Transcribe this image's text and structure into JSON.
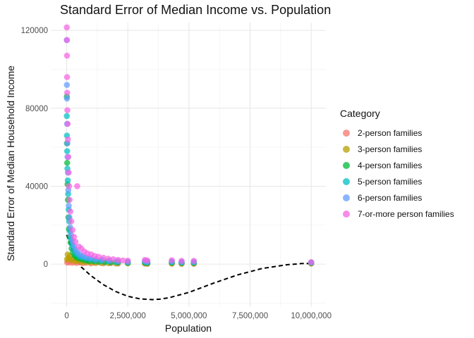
{
  "chart_data": {
    "type": "scatter",
    "title": "Standard Error of Median Income vs. Population",
    "xlabel": "Population",
    "ylabel": "Standard Error of Median Household Income",
    "xlim": [
      -650000,
      10600000
    ],
    "ylim": [
      -22000,
      124000
    ],
    "x_ticks": [
      0,
      2500000,
      5000000,
      7500000,
      10000000
    ],
    "x_tick_labels": [
      "0",
      "2,500,000",
      "5,000,000",
      "7,500,000",
      "10,000,000"
    ],
    "y_ticks": [
      0,
      40000,
      80000,
      120000
    ],
    "y_tick_labels": [
      "0",
      "40000",
      "80000",
      "120000"
    ],
    "grid": true,
    "legend_title": "Category",
    "legend_position": "right",
    "series": [
      {
        "name": "2-person families",
        "color": "#F8766D",
        "points": [
          [
            20000,
            800
          ],
          [
            60000,
            1500
          ],
          [
            110000,
            900
          ],
          [
            160000,
            1800
          ],
          [
            230000,
            700
          ],
          [
            300000,
            1200
          ],
          [
            400000,
            600
          ],
          [
            520000,
            900
          ],
          [
            650000,
            500
          ],
          [
            800000,
            700
          ],
          [
            1000000,
            400
          ],
          [
            1200000,
            600
          ],
          [
            1500000,
            400
          ],
          [
            1800000,
            500
          ],
          [
            2100000,
            300
          ],
          [
            2500000,
            400
          ],
          [
            3200000,
            300
          ],
          [
            3300000,
            200
          ],
          [
            4300000,
            250
          ],
          [
            4700000,
            200
          ],
          [
            5200000,
            200
          ],
          [
            10000000,
            300
          ]
        ]
      },
      {
        "name": "3-person families",
        "color": "#B79F00",
        "points": [
          [
            15000,
            2500
          ],
          [
            40000,
            5000
          ],
          [
            80000,
            3000
          ],
          [
            130000,
            4200
          ],
          [
            200000,
            2000
          ],
          [
            280000,
            3000
          ],
          [
            380000,
            1500
          ],
          [
            480000,
            2000
          ],
          [
            600000,
            1200
          ],
          [
            750000,
            1000
          ],
          [
            950000,
            900
          ],
          [
            1150000,
            700
          ],
          [
            1400000,
            600
          ],
          [
            1700000,
            500
          ],
          [
            2000000,
            400
          ],
          [
            2500000,
            500
          ],
          [
            3200000,
            400
          ],
          [
            3300000,
            300
          ],
          [
            4300000,
            400
          ],
          [
            4700000,
            300
          ],
          [
            5200000,
            300
          ],
          [
            10000000,
            400
          ]
        ]
      },
      {
        "name": "4-person families",
        "color": "#00BA38",
        "points": [
          [
            5000,
            86000
          ],
          [
            10000,
            62000
          ],
          [
            20000,
            52000
          ],
          [
            35000,
            41000
          ],
          [
            50000,
            33000
          ],
          [
            70000,
            24000
          ],
          [
            90000,
            18000
          ],
          [
            120000,
            14000
          ],
          [
            160000,
            11000
          ],
          [
            200000,
            8000
          ],
          [
            260000,
            6000
          ],
          [
            320000,
            4500
          ],
          [
            400000,
            3500
          ],
          [
            500000,
            3000
          ],
          [
            620000,
            2500
          ],
          [
            760000,
            2000
          ],
          [
            900000,
            1500
          ],
          [
            1100000,
            1500
          ],
          [
            1300000,
            1200
          ],
          [
            1550000,
            1000
          ],
          [
            1800000,
            900
          ],
          [
            2100000,
            800
          ],
          [
            2500000,
            700
          ],
          [
            3200000,
            800
          ],
          [
            3300000,
            600
          ],
          [
            4300000,
            700
          ],
          [
            4700000,
            600
          ],
          [
            5200000,
            600
          ],
          [
            10000000,
            600
          ]
        ]
      },
      {
        "name": "5-person families",
        "color": "#00BFC4",
        "points": [
          [
            5000,
            76000
          ],
          [
            10000,
            66000
          ],
          [
            20000,
            58000
          ],
          [
            30000,
            49000
          ],
          [
            45000,
            43000
          ],
          [
            60000,
            36000
          ],
          [
            80000,
            28000
          ],
          [
            100000,
            22000
          ],
          [
            130000,
            17000
          ],
          [
            170000,
            13000
          ],
          [
            220000,
            10000
          ],
          [
            280000,
            8000
          ],
          [
            350000,
            6000
          ],
          [
            430000,
            5000
          ],
          [
            520000,
            4000
          ],
          [
            640000,
            3500
          ],
          [
            780000,
            3000
          ],
          [
            950000,
            2500
          ],
          [
            1150000,
            2000
          ],
          [
            1400000,
            1800
          ],
          [
            1700000,
            1500
          ],
          [
            2000000,
            1200
          ],
          [
            2500000,
            1000
          ],
          [
            3200000,
            1200
          ],
          [
            3300000,
            900
          ],
          [
            4300000,
            1100
          ],
          [
            4700000,
            900
          ],
          [
            5200000,
            900
          ],
          [
            10000000,
            800
          ]
        ]
      },
      {
        "name": "6-person families",
        "color": "#619CFF",
        "points": [
          [
            5000,
            115000
          ],
          [
            8000,
            92000
          ],
          [
            12000,
            85000
          ],
          [
            18000,
            72000
          ],
          [
            25000,
            62000
          ],
          [
            35000,
            55000
          ],
          [
            50000,
            47000
          ],
          [
            65000,
            38000
          ],
          [
            85000,
            30000
          ],
          [
            110000,
            24000
          ],
          [
            140000,
            19000
          ],
          [
            180000,
            15000
          ],
          [
            230000,
            12000
          ],
          [
            290000,
            9500
          ],
          [
            360000,
            7500
          ],
          [
            440000,
            6000
          ],
          [
            540000,
            5000
          ],
          [
            660000,
            4200
          ],
          [
            800000,
            3500
          ],
          [
            980000,
            3000
          ],
          [
            1200000,
            2500
          ],
          [
            1450000,
            2200
          ],
          [
            1750000,
            1800
          ],
          [
            2100000,
            1500
          ],
          [
            2500000,
            1200
          ],
          [
            3200000,
            1500
          ],
          [
            3300000,
            1200
          ],
          [
            4300000,
            1400
          ],
          [
            4700000,
            1100
          ],
          [
            5200000,
            1200
          ],
          [
            10000000,
            900
          ]
        ]
      },
      {
        "name": "7-or-more person families",
        "color": "#F564E3",
        "points": [
          [
            5000,
            121500
          ],
          [
            8000,
            115000
          ],
          [
            12000,
            107000
          ],
          [
            15000,
            96000
          ],
          [
            20000,
            88000
          ],
          [
            28000,
            79000
          ],
          [
            38000,
            72000
          ],
          [
            50000,
            64000
          ],
          [
            65000,
            55000
          ],
          [
            80000,
            47000
          ],
          [
            100000,
            40000
          ],
          [
            120000,
            33000
          ],
          [
            150000,
            27000
          ],
          [
            190000,
            22000
          ],
          [
            240000,
            17500
          ],
          [
            300000,
            14000
          ],
          [
            360000,
            11500
          ],
          [
            430000,
            40000
          ],
          [
            500000,
            9000
          ],
          [
            600000,
            8000
          ],
          [
            720000,
            6500
          ],
          [
            850000,
            5500
          ],
          [
            1000000,
            5000
          ],
          [
            1150000,
            4200
          ],
          [
            1300000,
            3800
          ],
          [
            1500000,
            3300
          ],
          [
            1700000,
            2800
          ],
          [
            1900000,
            2500
          ],
          [
            2100000,
            2200
          ],
          [
            2300000,
            1900
          ],
          [
            2500000,
            1800
          ],
          [
            3200000,
            2200
          ],
          [
            3300000,
            1900
          ],
          [
            4300000,
            2000
          ],
          [
            4700000,
            1700
          ],
          [
            5200000,
            1700
          ],
          [
            10000000,
            1000
          ]
        ]
      }
    ],
    "trend_line": {
      "style": "dashed",
      "color": "#000000",
      "x": [
        0,
        300000,
        600000,
        1000000,
        1500000,
        2000000,
        2500000,
        3000000,
        3500000,
        3800000,
        4200000,
        5000000,
        6000000,
        7000000,
        8000000,
        9000000,
        9600000,
        10000000
      ],
      "y": [
        15000,
        5000,
        -1500,
        -6000,
        -10500,
        -14000,
        -16500,
        -17800,
        -18200,
        -18000,
        -17200,
        -14500,
        -9800,
        -5500,
        -2200,
        -300,
        300,
        300
      ]
    }
  }
}
